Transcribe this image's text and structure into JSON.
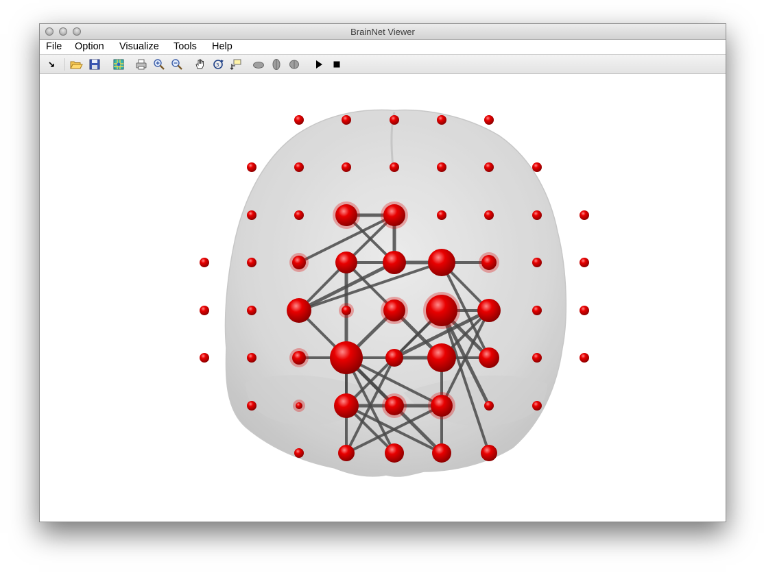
{
  "window": {
    "title": "BrainNet Viewer"
  },
  "menu": [
    {
      "label": "File"
    },
    {
      "label": "Option"
    },
    {
      "label": "Visualize"
    },
    {
      "label": "Tools"
    },
    {
      "label": "Help"
    }
  ],
  "toolbar": [
    {
      "icon": "arrow-cursor-icon"
    },
    {
      "icon": "open-folder-icon"
    },
    {
      "icon": "save-disk-icon"
    },
    {
      "icon": "colormap-icon"
    },
    {
      "icon": "print-icon"
    },
    {
      "icon": "zoom-in-icon"
    },
    {
      "icon": "zoom-out-icon"
    },
    {
      "icon": "pan-hand-icon"
    },
    {
      "icon": "rotate-3d-icon"
    },
    {
      "icon": "data-cursor-icon"
    },
    {
      "icon": "brain-side-view-icon"
    },
    {
      "icon": "brain-top-view-icon"
    },
    {
      "icon": "brain-front-view-icon"
    },
    {
      "icon": "play-icon"
    },
    {
      "icon": "stop-icon"
    }
  ],
  "colors": {
    "node": "#e00000",
    "edge": "#4a4a4a",
    "surface": "#d4d4d4"
  }
}
